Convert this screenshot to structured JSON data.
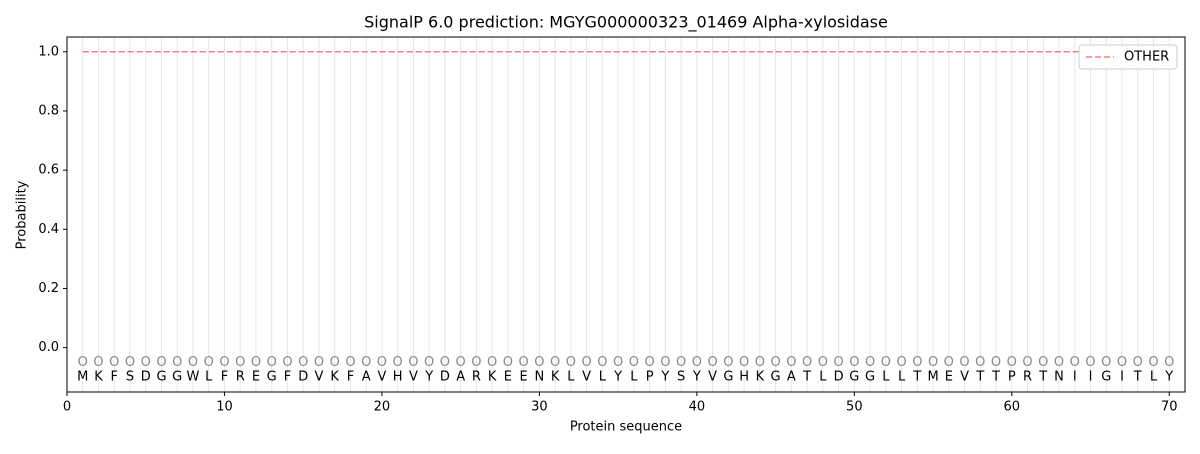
{
  "chart_data": {
    "type": "line",
    "title": "SignalP 6.0 prediction: MGYG000000323_01469 Alpha-xylosidase",
    "xlabel": "Protein sequence",
    "ylabel": "Probability",
    "x": [
      1,
      2,
      3,
      4,
      5,
      6,
      7,
      8,
      9,
      10,
      11,
      12,
      13,
      14,
      15,
      16,
      17,
      18,
      19,
      20,
      21,
      22,
      23,
      24,
      25,
      26,
      27,
      28,
      29,
      30,
      31,
      32,
      33,
      34,
      35,
      36,
      37,
      38,
      39,
      40,
      41,
      42,
      43,
      44,
      45,
      46,
      47,
      48,
      49,
      50,
      51,
      52,
      53,
      54,
      55,
      56,
      57,
      58,
      59,
      60,
      61,
      62,
      63,
      64,
      65,
      66,
      67,
      68,
      69,
      70
    ],
    "residues": [
      "M",
      "K",
      "F",
      "S",
      "D",
      "G",
      "G",
      "W",
      "L",
      "F",
      "R",
      "E",
      "G",
      "F",
      "D",
      "V",
      "K",
      "F",
      "A",
      "V",
      "H",
      "V",
      "Y",
      "D",
      "A",
      "R",
      "K",
      "E",
      "E",
      "N",
      "K",
      "L",
      "V",
      "L",
      "Y",
      "L",
      "P",
      "Y",
      "S",
      "Y",
      "V",
      "G",
      "H",
      "K",
      "G",
      "A",
      "T",
      "L",
      "D",
      "G",
      "G",
      "L",
      "L",
      "T",
      "M",
      "E",
      "V",
      "T",
      "T",
      "P",
      "R",
      "T",
      "N",
      "I",
      "I",
      "G",
      "I",
      "T",
      "L",
      "Y"
    ],
    "region_labels": [
      "O",
      "O",
      "O",
      "O",
      "O",
      "O",
      "O",
      "O",
      "O",
      "O",
      "O",
      "O",
      "O",
      "O",
      "O",
      "O",
      "O",
      "O",
      "O",
      "O",
      "O",
      "O",
      "O",
      "O",
      "O",
      "O",
      "O",
      "O",
      "O",
      "O",
      "O",
      "O",
      "O",
      "O",
      "O",
      "O",
      "O",
      "O",
      "O",
      "O",
      "O",
      "O",
      "O",
      "O",
      "O",
      "O",
      "O",
      "O",
      "O",
      "O",
      "O",
      "O",
      "O",
      "O",
      "O",
      "O",
      "O",
      "O",
      "O",
      "O",
      "O",
      "O",
      "O",
      "O",
      "O",
      "O",
      "O",
      "O",
      "O",
      "O"
    ],
    "series": [
      {
        "name": "OTHER",
        "color": "#f08080",
        "dash": true,
        "values": [
          1,
          1,
          1,
          1,
          1,
          1,
          1,
          1,
          1,
          1,
          1,
          1,
          1,
          1,
          1,
          1,
          1,
          1,
          1,
          1,
          1,
          1,
          1,
          1,
          1,
          1,
          1,
          1,
          1,
          1,
          1,
          1,
          1,
          1,
          1,
          1,
          1,
          1,
          1,
          1,
          1,
          1,
          1,
          1,
          1,
          1,
          1,
          1,
          1,
          1,
          1,
          1,
          1,
          1,
          1,
          1,
          1,
          1,
          1,
          1,
          1,
          1,
          1,
          1,
          1,
          1,
          1,
          1,
          1,
          1
        ]
      }
    ],
    "xlim": [
      0,
      71
    ],
    "ylim": [
      -0.15,
      1.05
    ],
    "xticks": [
      0,
      10,
      20,
      30,
      40,
      50,
      60,
      70
    ],
    "yticks": [
      {
        "value": 0,
        "label": "0.0"
      },
      {
        "value": 0.2,
        "label": "0.2"
      },
      {
        "value": 0.4,
        "label": "0.4"
      },
      {
        "value": 0.6,
        "label": "0.6"
      },
      {
        "value": 0.8,
        "label": "0.8"
      },
      {
        "value": 1,
        "label": "1.0"
      }
    ],
    "legend": "upper right"
  }
}
